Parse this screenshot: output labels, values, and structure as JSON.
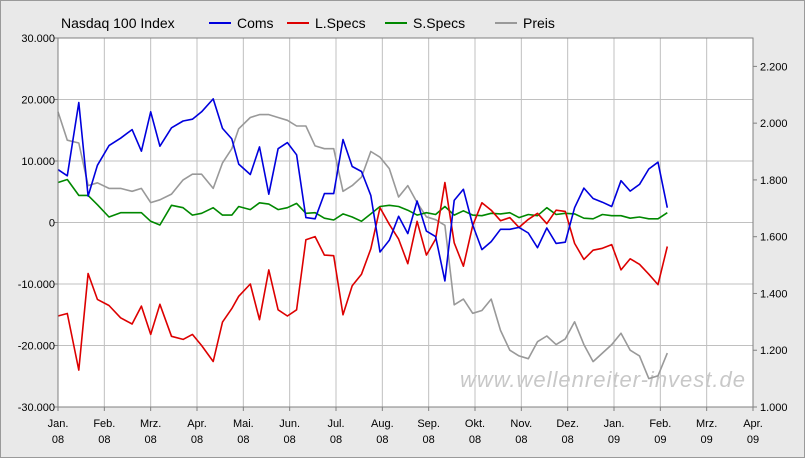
{
  "chart_data": {
    "type": "line",
    "title": "Nasdaq 100 Index",
    "watermark": "www.wellenreiter-invest.de",
    "grid": true,
    "legend_placement": "top",
    "x_tick_labels": [
      [
        "Jan.",
        "08"
      ],
      [
        "Feb.",
        "08"
      ],
      [
        "Mrz.",
        "08"
      ],
      [
        "Apr.",
        "08"
      ],
      [
        "Mai.",
        "08"
      ],
      [
        "Jun.",
        "08"
      ],
      [
        "Jul.",
        "08"
      ],
      [
        "Aug.",
        "08"
      ],
      [
        "Sep.",
        "08"
      ],
      [
        "Okt.",
        "08"
      ],
      [
        "Nov.",
        "08"
      ],
      [
        "Dez.",
        "08"
      ],
      [
        "Jan.",
        "09"
      ],
      [
        "Feb.",
        "09"
      ],
      [
        "Mrz.",
        "09"
      ],
      [
        "Apr.",
        "09"
      ]
    ],
    "x_range_months": [
      0,
      15
    ],
    "left_axis": {
      "range": [
        -30000,
        30000
      ],
      "ticks": [
        30000,
        20000,
        10000,
        0,
        -10000,
        -20000,
        -30000
      ],
      "tick_labels": [
        "30.000",
        "20.000",
        "10.000",
        "0",
        "-10.000",
        "-20.000",
        "-30.000"
      ]
    },
    "right_axis": {
      "range": [
        1.0,
        2.3
      ],
      "ticks": [
        2.2,
        2.0,
        1.8,
        1.6,
        1.4,
        1.2,
        1.0
      ],
      "tick_labels": [
        "2.200",
        "2.000",
        "1.800",
        "1.600",
        "1.400",
        "1.200",
        "1.000"
      ]
    },
    "series": [
      {
        "name": "Coms",
        "color": "#0000dd",
        "axis": "left",
        "x": [
          0.0,
          0.2,
          0.45,
          0.65,
          0.85,
          1.1,
          1.35,
          1.6,
          1.8,
          2.0,
          2.2,
          2.45,
          2.7,
          2.9,
          3.1,
          3.35,
          3.55,
          3.75,
          3.9,
          4.15,
          4.35,
          4.55,
          4.75,
          4.95,
          5.15,
          5.35,
          5.55,
          5.75,
          5.95,
          6.15,
          6.35,
          6.55,
          6.75,
          6.95,
          7.15,
          7.35,
          7.55,
          7.75,
          7.95,
          8.15,
          8.35,
          8.55,
          8.75,
          8.95,
          9.15,
          9.35,
          9.55,
          9.75,
          9.95,
          10.15,
          10.35,
          10.55,
          10.75,
          10.95,
          11.15,
          11.35,
          11.55,
          11.75,
          11.95,
          12.15,
          12.35,
          12.55,
          12.75,
          12.95,
          13.15,
          13.35,
          13.55,
          13.75,
          13.95,
          14.15,
          14.35,
          14.55,
          14.75,
          14.95
        ],
        "values": [
          8600,
          7600,
          19500,
          4300,
          9300,
          12500,
          13700,
          15100,
          11600,
          18000,
          12400,
          15400,
          16500,
          16800,
          18000,
          20100,
          15300,
          13600,
          9500,
          7800,
          12300,
          4600,
          12000,
          13000,
          11000,
          800,
          600,
          4700,
          4700,
          13500,
          9100,
          8300,
          4400,
          -4800,
          -2900,
          1000,
          -1800,
          3500,
          -1400,
          -2300,
          -9500,
          3600,
          5400,
          -400,
          -4400,
          -3100,
          -1100,
          -1100,
          -800,
          -1700,
          -4100,
          -900,
          -3400,
          -3200,
          2400,
          5600,
          3900,
          3300,
          2600,
          6800,
          5100,
          6200,
          8700,
          9800,
          2400,
          null,
          null,
          null,
          null,
          null,
          null,
          null,
          null,
          null
        ]
      },
      {
        "name": "L.Specs",
        "color": "#dd0000",
        "axis": "left",
        "x": [
          0.0,
          0.2,
          0.45,
          0.65,
          0.85,
          1.1,
          1.35,
          1.6,
          1.8,
          2.0,
          2.2,
          2.45,
          2.7,
          2.9,
          3.1,
          3.35,
          3.55,
          3.75,
          3.9,
          4.15,
          4.35,
          4.55,
          4.75,
          4.95,
          5.15,
          5.35,
          5.55,
          5.75,
          5.95,
          6.15,
          6.35,
          6.55,
          6.75,
          6.95,
          7.15,
          7.35,
          7.55,
          7.75,
          7.95,
          8.15,
          8.35,
          8.55,
          8.75,
          8.95,
          9.15,
          9.35,
          9.55,
          9.75,
          9.95,
          10.15,
          10.35,
          10.55,
          10.75,
          10.95,
          11.15,
          11.35,
          11.55,
          11.75,
          11.95,
          12.15,
          12.35,
          12.55,
          12.75,
          12.95,
          13.15,
          13.35,
          13.55,
          13.75,
          13.95,
          14.15,
          14.35,
          14.55,
          14.75,
          14.95
        ],
        "values": [
          -15200,
          -14800,
          -24000,
          -8300,
          -12500,
          -13500,
          -15500,
          -16500,
          -13600,
          -18200,
          -13300,
          -18500,
          -19000,
          -18200,
          -20000,
          -22600,
          -16200,
          -14000,
          -12000,
          -10000,
          -15800,
          -7700,
          -14200,
          -15200,
          -14200,
          -2800,
          -2300,
          -5300,
          -5400,
          -15000,
          -10300,
          -8400,
          -4300,
          2400,
          -300,
          -2700,
          -6700,
          200,
          -5300,
          -2700,
          6500,
          -3300,
          -7100,
          -500,
          3200,
          2000,
          300,
          800,
          -800,
          500,
          1500,
          -200,
          2000,
          1800,
          -3400,
          -6000,
          -4500,
          -4200,
          -3600,
          -7700,
          -5900,
          -6800,
          -8400,
          -10100,
          -3900,
          null,
          null,
          null,
          null,
          null,
          null,
          null,
          null,
          null
        ]
      },
      {
        "name": "S.Specs",
        "color": "#008800",
        "axis": "left",
        "x": [
          0.0,
          0.2,
          0.45,
          0.65,
          0.85,
          1.1,
          1.35,
          1.6,
          1.8,
          2.0,
          2.2,
          2.45,
          2.7,
          2.9,
          3.1,
          3.35,
          3.55,
          3.75,
          3.9,
          4.15,
          4.35,
          4.55,
          4.75,
          4.95,
          5.15,
          5.35,
          5.55,
          5.75,
          5.95,
          6.15,
          6.35,
          6.55,
          6.75,
          6.95,
          7.15,
          7.35,
          7.55,
          7.75,
          7.95,
          8.15,
          8.35,
          8.55,
          8.75,
          8.95,
          9.15,
          9.35,
          9.55,
          9.75,
          9.95,
          10.15,
          10.35,
          10.55,
          10.75,
          10.95,
          11.15,
          11.35,
          11.55,
          11.75,
          11.95,
          12.15,
          12.35,
          12.55,
          12.75,
          12.95,
          13.15,
          13.35,
          13.55,
          13.75,
          13.95,
          14.15,
          14.35,
          14.55,
          14.75,
          14.95
        ],
        "values": [
          6500,
          7000,
          4400,
          4400,
          2900,
          900,
          1600,
          1600,
          1600,
          200,
          -400,
          2800,
          2400,
          1200,
          1500,
          2400,
          1200,
          1200,
          2600,
          2100,
          3200,
          3000,
          2100,
          2400,
          3100,
          1500,
          1600,
          700,
          400,
          1400,
          900,
          200,
          1400,
          2600,
          2800,
          2600,
          2000,
          1200,
          1600,
          1300,
          2600,
          1200,
          1900,
          1200,
          1100,
          1500,
          1400,
          1600,
          800,
          1300,
          1100,
          2400,
          1300,
          1500,
          1400,
          700,
          600,
          1300,
          1100,
          1100,
          700,
          900,
          600,
          600,
          1600,
          null,
          null,
          null,
          null,
          null,
          null,
          null,
          null,
          null
        ]
      },
      {
        "name": "Preis",
        "color": "#999999",
        "axis": "right",
        "x": [
          0.0,
          0.2,
          0.45,
          0.65,
          0.85,
          1.1,
          1.35,
          1.6,
          1.8,
          2.0,
          2.2,
          2.45,
          2.7,
          2.9,
          3.1,
          3.35,
          3.55,
          3.75,
          3.9,
          4.15,
          4.35,
          4.55,
          4.75,
          4.95,
          5.15,
          5.35,
          5.55,
          5.75,
          5.95,
          6.15,
          6.35,
          6.55,
          6.75,
          6.95,
          7.15,
          7.35,
          7.55,
          7.75,
          7.95,
          8.15,
          8.35,
          8.55,
          8.75,
          8.95,
          9.15,
          9.35,
          9.55,
          9.75,
          9.95,
          10.15,
          10.35,
          10.55,
          10.75,
          10.95,
          11.15,
          11.35,
          11.55,
          11.75,
          11.95,
          12.15,
          12.35,
          12.55,
          12.75,
          12.95,
          13.15,
          13.35,
          13.55,
          13.75,
          13.95,
          14.15,
          14.35,
          14.55,
          14.75,
          14.95
        ],
        "values": [
          2.04,
          1.94,
          1.93,
          1.78,
          1.79,
          1.77,
          1.77,
          1.76,
          1.77,
          1.72,
          1.73,
          1.75,
          1.8,
          1.82,
          1.82,
          1.77,
          1.86,
          1.91,
          1.98,
          2.02,
          2.03,
          2.03,
          2.02,
          2.01,
          1.99,
          1.99,
          1.92,
          1.91,
          1.91,
          1.76,
          1.78,
          1.81,
          1.9,
          1.88,
          1.84,
          1.74,
          1.78,
          1.72,
          1.67,
          1.66,
          1.64,
          1.36,
          1.38,
          1.33,
          1.34,
          1.38,
          1.27,
          1.2,
          1.18,
          1.17,
          1.23,
          1.25,
          1.22,
          1.24,
          1.3,
          1.22,
          1.16,
          1.19,
          1.22,
          1.26,
          1.2,
          1.18,
          1.1,
          1.11,
          1.19,
          null,
          null,
          null,
          null,
          null,
          null,
          null,
          null,
          null
        ]
      }
    ]
  }
}
